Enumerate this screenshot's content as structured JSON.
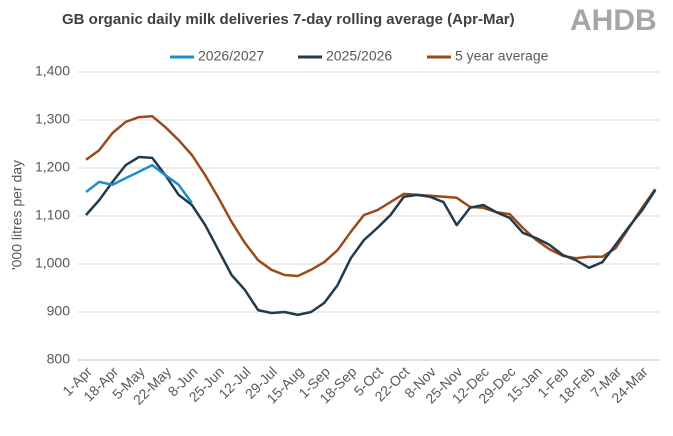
{
  "logo": "AHDB",
  "chart_data": {
    "type": "line",
    "title": "GB organic daily milk deliveries 7-day rolling average (Apr-Mar)",
    "y_label": "'000 litres per day",
    "categories": [
      "1-Apr",
      null,
      "18-Apr",
      null,
      "5-May",
      null,
      "22-May",
      null,
      "8-Jun",
      null,
      "25-Jun",
      null,
      "12-Jul",
      null,
      "29-Jul",
      null,
      "15-Aug",
      null,
      "1-Sep",
      null,
      "18-Sep",
      null,
      "5-Oct",
      null,
      "22-Oct",
      null,
      "8-Nov",
      null,
      "25-Nov",
      null,
      "12-Dec",
      null,
      "29-Dec",
      null,
      "15-Jan",
      null,
      "1-Feb",
      null,
      "18-Feb",
      null,
      "7-Mar",
      null,
      "24-Mar",
      null
    ],
    "series": [
      {
        "name": "2026/2027",
        "color": "#1f8dc9",
        "values": [
          1150,
          1171,
          1165,
          1179,
          1192,
          1206,
          1185,
          1165,
          1127,
          null,
          null,
          null,
          null,
          null,
          null,
          null,
          null,
          null,
          null,
          null,
          null,
          null,
          null,
          null,
          null,
          null,
          null,
          null,
          null,
          null,
          null,
          null,
          null,
          null,
          null,
          null,
          null,
          null,
          null,
          null,
          null,
          null,
          null,
          null
        ]
      },
      {
        "name": "2025/2026",
        "color": "#1f3b4d",
        "values": [
          1102,
          1133,
          1171,
          1206,
          1223,
          1221,
          1185,
          1144,
          1123,
          1081,
          1029,
          977,
          946,
          904,
          898,
          900,
          894,
          900,
          919,
          956,
          1012,
          1050,
          1075,
          1102,
          1140,
          1144,
          1140,
          1129,
          1081,
          1117,
          1123,
          1108,
          1096,
          1065,
          1054,
          1040,
          1019,
          1008,
          992,
          1004,
          1040,
          1077,
          1112,
          1154
        ]
      },
      {
        "name": "5 year average",
        "color": "#9c4a1a",
        "values": [
          1217,
          1237,
          1273,
          1296,
          1306,
          1308,
          1285,
          1258,
          1227,
          1185,
          1138,
          1088,
          1044,
          1008,
          988,
          977,
          975,
          988,
          1004,
          1029,
          1067,
          1102,
          1112,
          1129,
          1146,
          1144,
          1142,
          1140,
          1138,
          1119,
          1117,
          1108,
          1104,
          1075,
          1050,
          1031,
          1017,
          1012,
          1015,
          1015,
          1033,
          1075,
          1117,
          1156
        ]
      }
    ],
    "ylim": [
      800,
      1400
    ],
    "yticks": [
      800,
      900,
      {
        "value": 1000,
        "label": "1,000"
      },
      {
        "value": 1100,
        "label": "1,100"
      },
      {
        "value": 1200,
        "label": "1,200"
      },
      {
        "value": 1300,
        "label": "1,300"
      },
      {
        "value": 1400,
        "label": "1,400"
      }
    ],
    "grid": true,
    "legend": "top"
  }
}
